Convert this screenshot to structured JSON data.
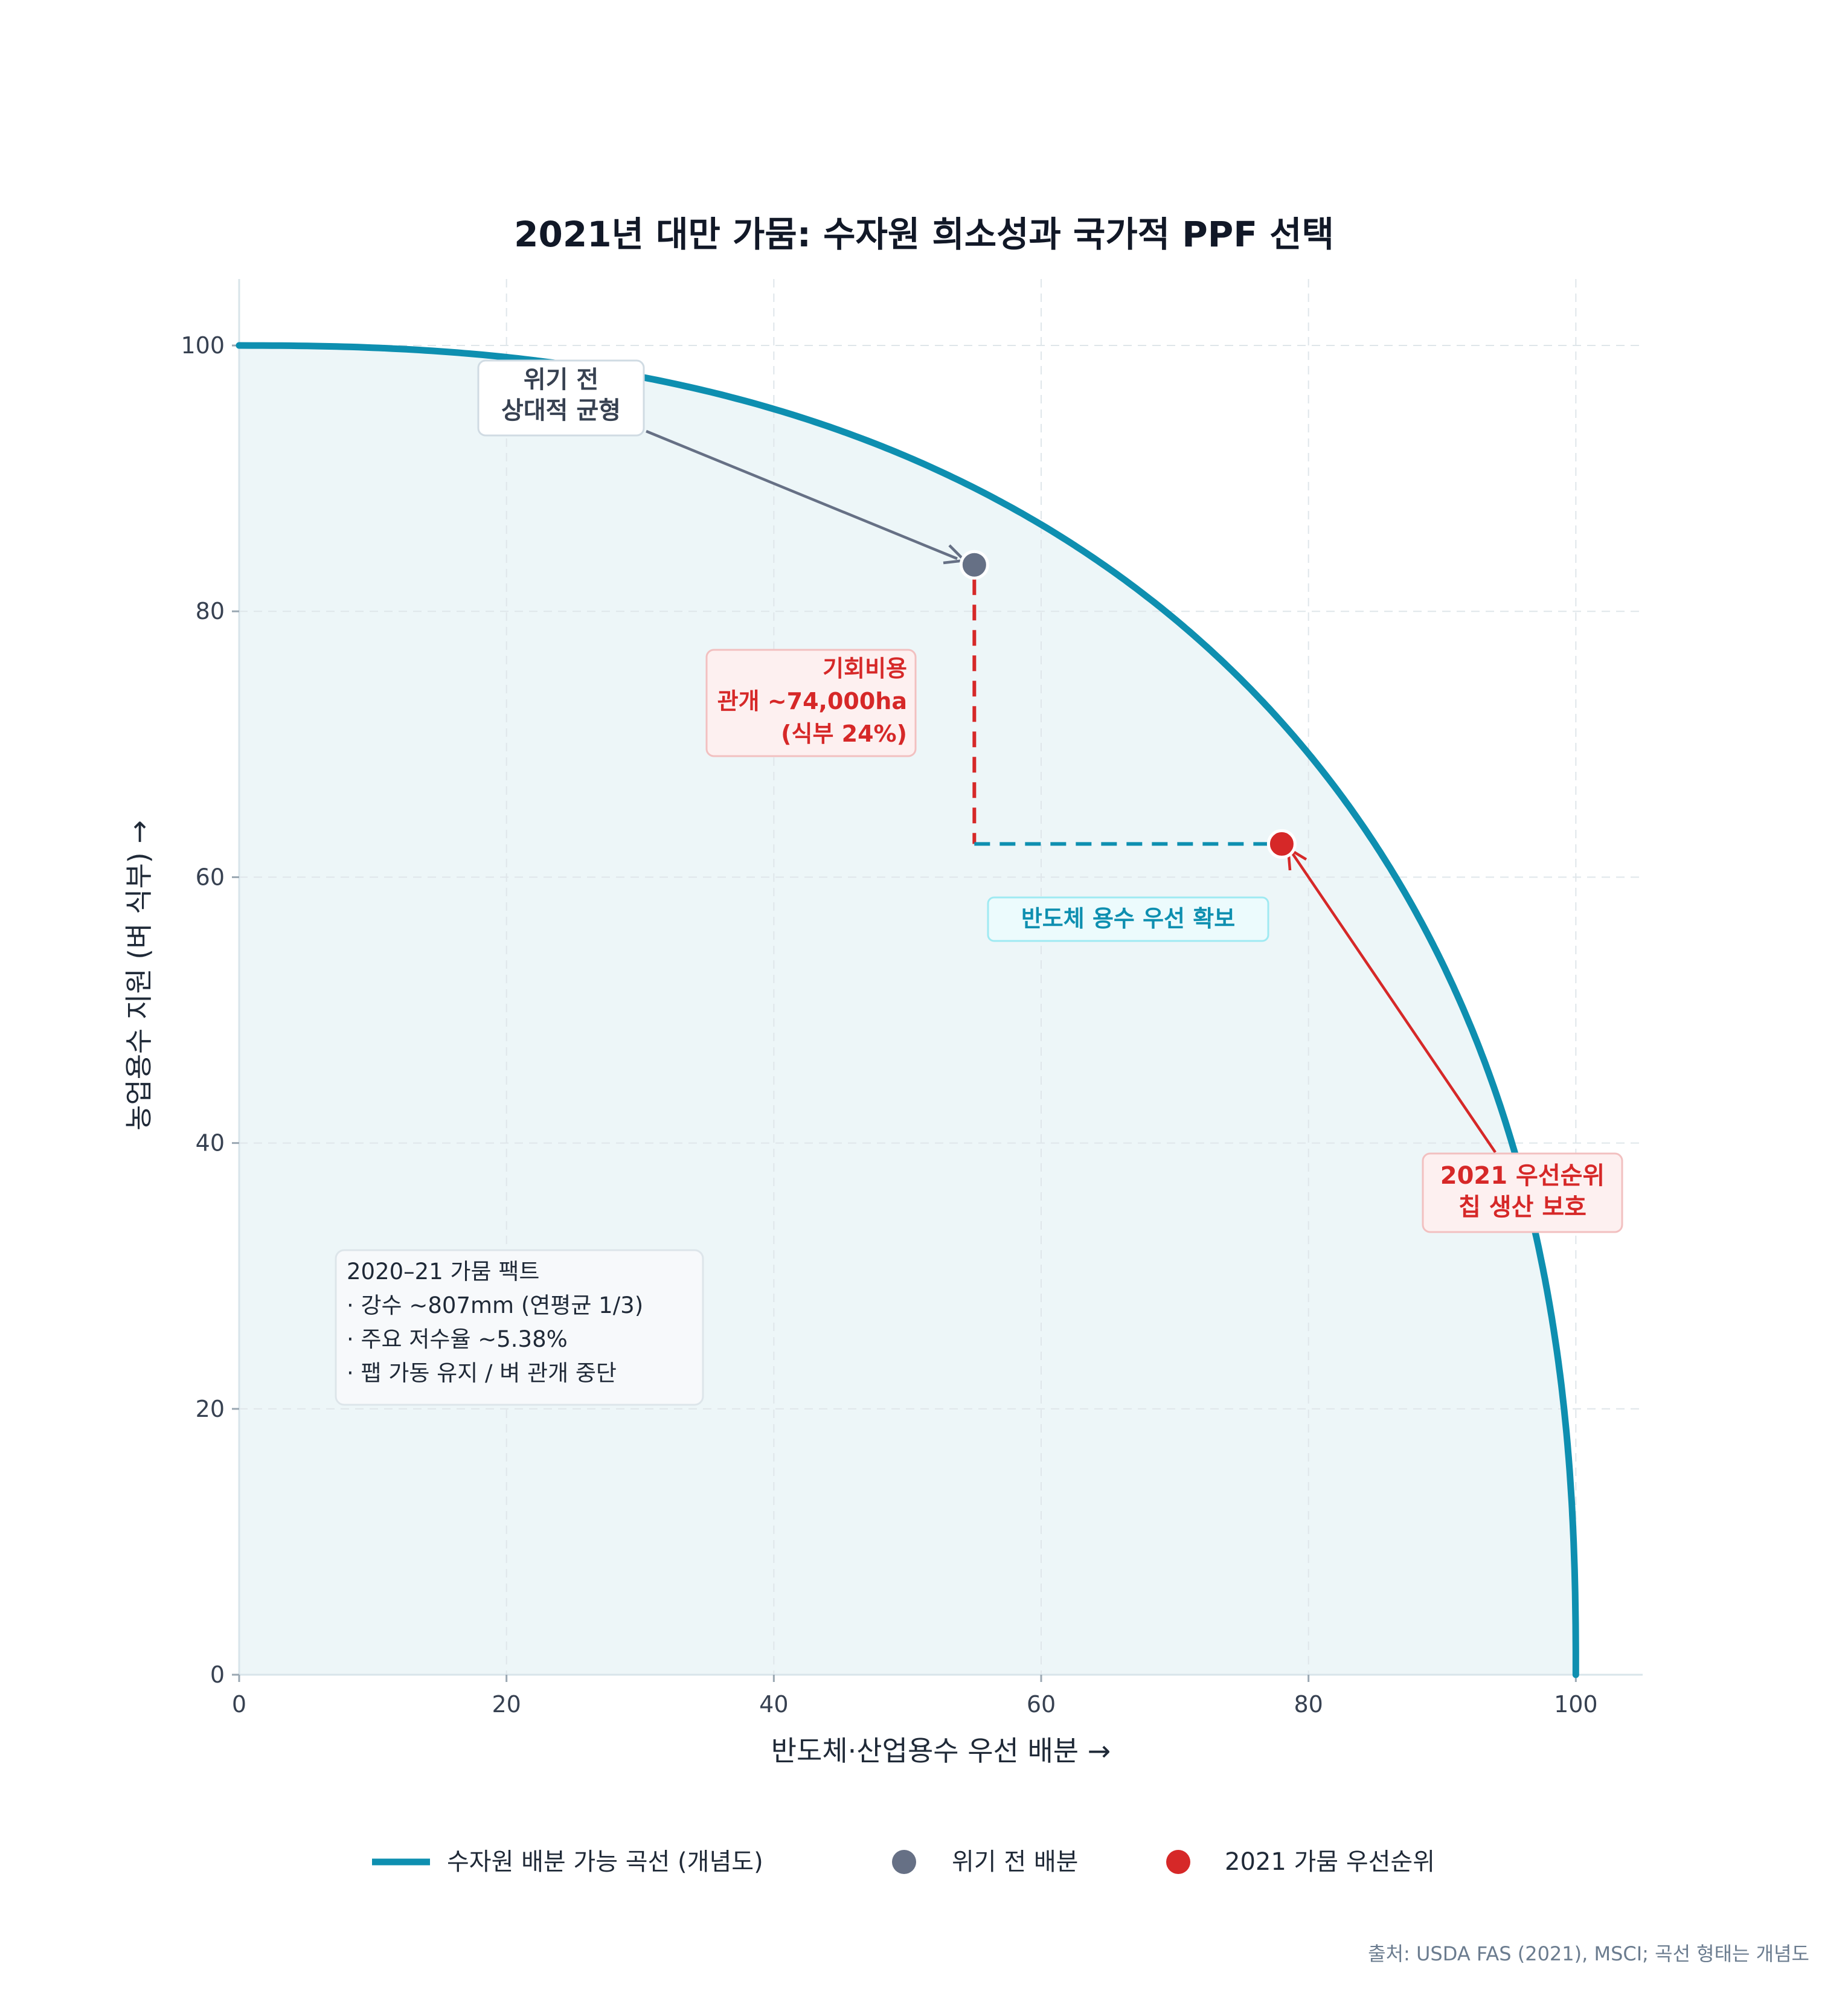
{
  "chart_data": {
    "type": "line",
    "title": "2021년 대만 가뭄: 수자원 희소성과 국가적 PPF 선택",
    "xlabel": "반도체·산업용수 우선 배분 →",
    "ylabel": "농업용수 지원 (벼 식부) →",
    "xlim": [
      0,
      105
    ],
    "ylim": [
      0,
      105
    ],
    "xticks": [
      0,
      20,
      40,
      60,
      80,
      100
    ],
    "yticks": [
      0,
      20,
      40,
      60,
      80,
      100
    ],
    "grid": true,
    "legend_position": "bottom-center",
    "series": [
      {
        "name": "수자원 배분 가능 곡선 (개념도)",
        "kind": "curve",
        "color": "#0e8fb0",
        "exponent": 2.4,
        "x_max": 100,
        "y_max": 100
      }
    ],
    "points": [
      {
        "name": "위기 전 배분",
        "x": 55,
        "y": 83.5,
        "color": "#667085"
      },
      {
        "name": "2021 가뭄 우선순위",
        "x": 78,
        "y": 62.5,
        "color": "#d62828"
      }
    ],
    "annotations": {
      "pre_crisis": [
        "위기 전",
        "상대적 균형"
      ],
      "opportunity_cost": [
        "기회비용",
        "관개 ~74,000ha",
        "(식부 24%)"
      ],
      "semiconductor": "반도체 용수 우선 확보",
      "priority_2021": [
        "2021 우선순위",
        "칩 생산 보호"
      ],
      "facts": [
        "2020–21 가뭄 팩트",
        "· 강수 ~807mm (연평균 1/3)",
        "· 주요 저수율 ~5.38%",
        "· 팹 가동 유지 / 벼 관개 중단"
      ]
    },
    "source": "출처: USDA FAS (2021), MSCI; 곡선 형태는 개념도"
  },
  "colors": {
    "curve": "#0e8fb0",
    "fill": "#edf6f8",
    "red": "#d62828",
    "gray": "#667085",
    "text": "#1f2937",
    "title": "#111827"
  }
}
